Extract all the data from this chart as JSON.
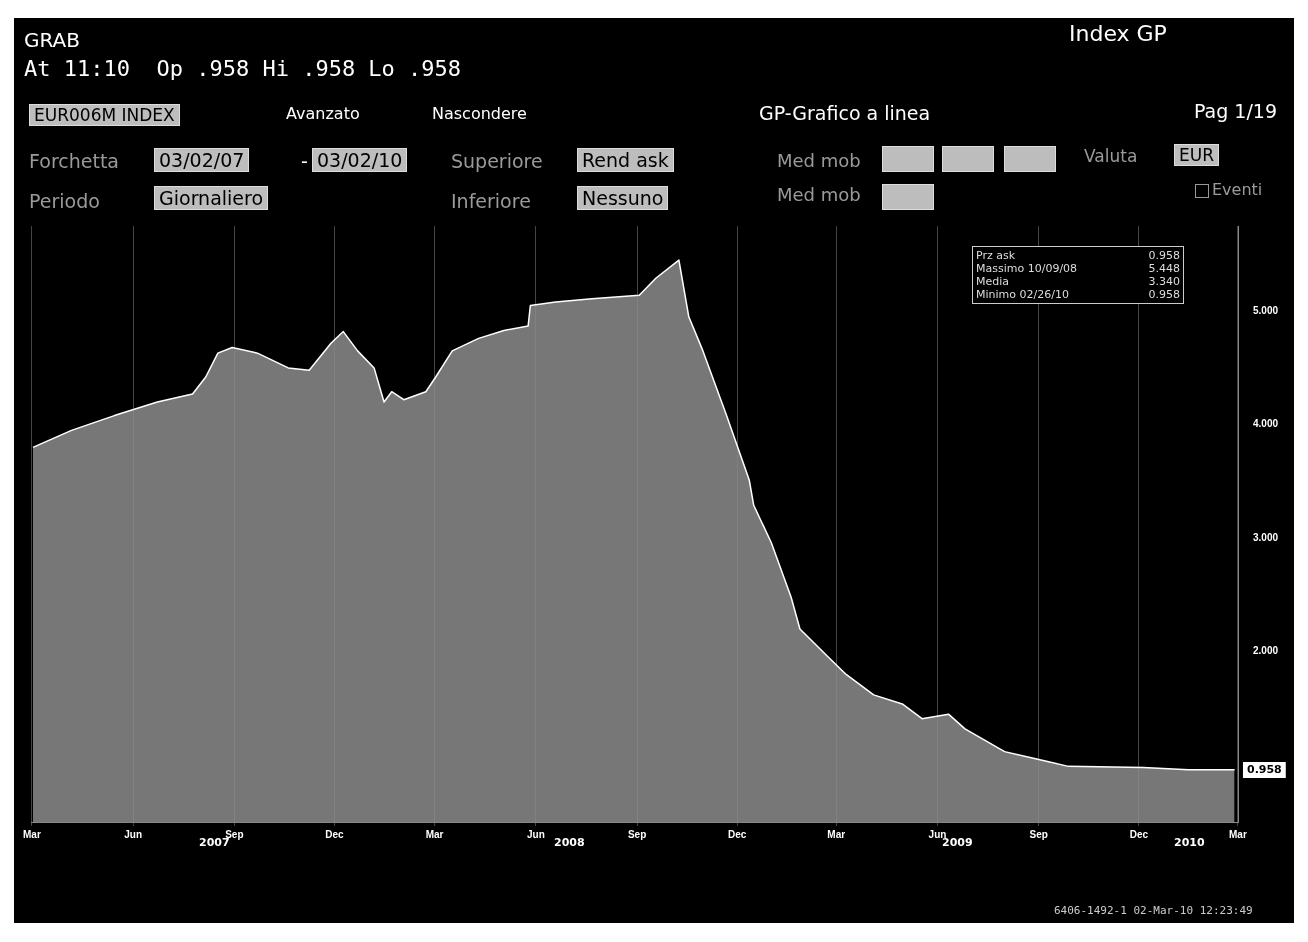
{
  "chart_data": {
    "type": "area",
    "x": [
      "2007-03-02",
      "2007-04-06",
      "2007-05-15",
      "2007-06-23",
      "2007-07-25",
      "2007-08-06",
      "2007-08-17",
      "2007-08-30",
      "2007-09-22",
      "2007-10-20",
      "2007-11-08",
      "2007-11-28",
      "2007-12-09",
      "2007-12-22",
      "2008-01-06",
      "2008-01-15",
      "2008-01-22",
      "2008-02-02",
      "2008-02-22",
      "2008-03-02",
      "2008-03-17",
      "2008-04-10",
      "2008-05-03",
      "2008-05-25",
      "2008-05-27",
      "2008-06-19",
      "2008-07-22",
      "2008-09-03",
      "2008-09-18",
      "2008-10-09",
      "2008-10-18",
      "2008-10-30",
      "2008-11-21",
      "2008-12-12",
      "2008-12-16",
      "2009-01-01",
      "2009-01-19",
      "2009-01-27",
      "2009-02-21",
      "2009-03-10",
      "2009-04-04",
      "2009-04-30",
      "2009-05-18",
      "2009-06-11",
      "2009-06-26",
      "2009-08-01",
      "2009-09-10",
      "2009-09-28",
      "2009-12-05",
      "2010-01-15",
      "2010-02-26"
    ],
    "series": [
      {
        "color": "#ffffff",
        "values": [
          3.8,
          3.95,
          4.08,
          4.2,
          4.27,
          4.42,
          4.63,
          4.68,
          4.63,
          4.5,
          4.48,
          4.72,
          4.82,
          4.65,
          4.5,
          4.2,
          4.29,
          4.22,
          4.29,
          4.42,
          4.65,
          4.76,
          4.83,
          4.87,
          5.05,
          5.08,
          5.11,
          5.14,
          5.29,
          5.45,
          4.95,
          4.67,
          4.09,
          3.51,
          3.29,
          2.96,
          2.48,
          2.2,
          1.96,
          1.8,
          1.62,
          1.54,
          1.41,
          1.45,
          1.32,
          1.12,
          1.03,
          0.99,
          0.98,
          0.96,
          0.96
        ]
      }
    ],
    "xlim": [
      "2007-03-01",
      "2010-03-02"
    ],
    "xticks": [
      {
        "value": "2007-03-01",
        "label": "Mar"
      },
      {
        "value": "2007-06-01",
        "label": "Jun"
      },
      {
        "value": "2007-09-01",
        "label": "Sep"
      },
      {
        "value": "2007-12-01",
        "label": "Dec"
      },
      {
        "value": "2008-03-01",
        "label": "Mar"
      },
      {
        "value": "2008-06-01",
        "label": "Jun"
      },
      {
        "value": "2008-09-01",
        "label": "Sep"
      },
      {
        "value": "2008-12-01",
        "label": "Dec"
      },
      {
        "value": "2009-03-01",
        "label": "Mar"
      },
      {
        "value": "2009-06-01",
        "label": "Jun"
      },
      {
        "value": "2009-09-01",
        "label": "Sep"
      },
      {
        "value": "2009-12-01",
        "label": "Dec"
      },
      {
        "value": "2010-03-01",
        "label": "Mar"
      }
    ],
    "ylim": [
      0.5,
      5.75
    ],
    "yticks": [
      {
        "value": 2,
        "label": "2.000"
      },
      {
        "value": 3,
        "label": "3.000"
      },
      {
        "value": 4,
        "label": "4.000"
      },
      {
        "value": 5,
        "label": "5.000"
      }
    ],
    "grid": "x",
    "legend": false,
    "marker": "none",
    "line_style": "solid",
    "annotations": [
      "GRAB",
      "Index GP",
      "EUR006M INDEX",
      "Avanzato",
      "Nascondere",
      "GP-Grafico a linea",
      "Pag 1/19",
      "Forchetta",
      "03/02/07",
      "-",
      "03/02/10",
      "Superiore",
      "Rend ask",
      "Med mob",
      "Valuta",
      "EUR",
      "Periodo",
      "Giornaliero",
      "Inferiore",
      "Nessuno",
      "Med mob",
      "Eventi",
      "Prz ask",
      "0.958",
      "Massimo 10/09/08",
      "5.448",
      "Media",
      "3.340",
      "Minimo 02/26/10",
      "0.958",
      "6406-1492-1 02-Mar-10 12:23:49",
      "2007",
      "2008",
      "2009",
      "2010",
      {
        "text": "0.958",
        "x": "2010-02-26",
        "y": 0.958
      }
    ],
    "subtitle": "At 11:10  Op .958 Hi .958 Lo .958"
  }
}
